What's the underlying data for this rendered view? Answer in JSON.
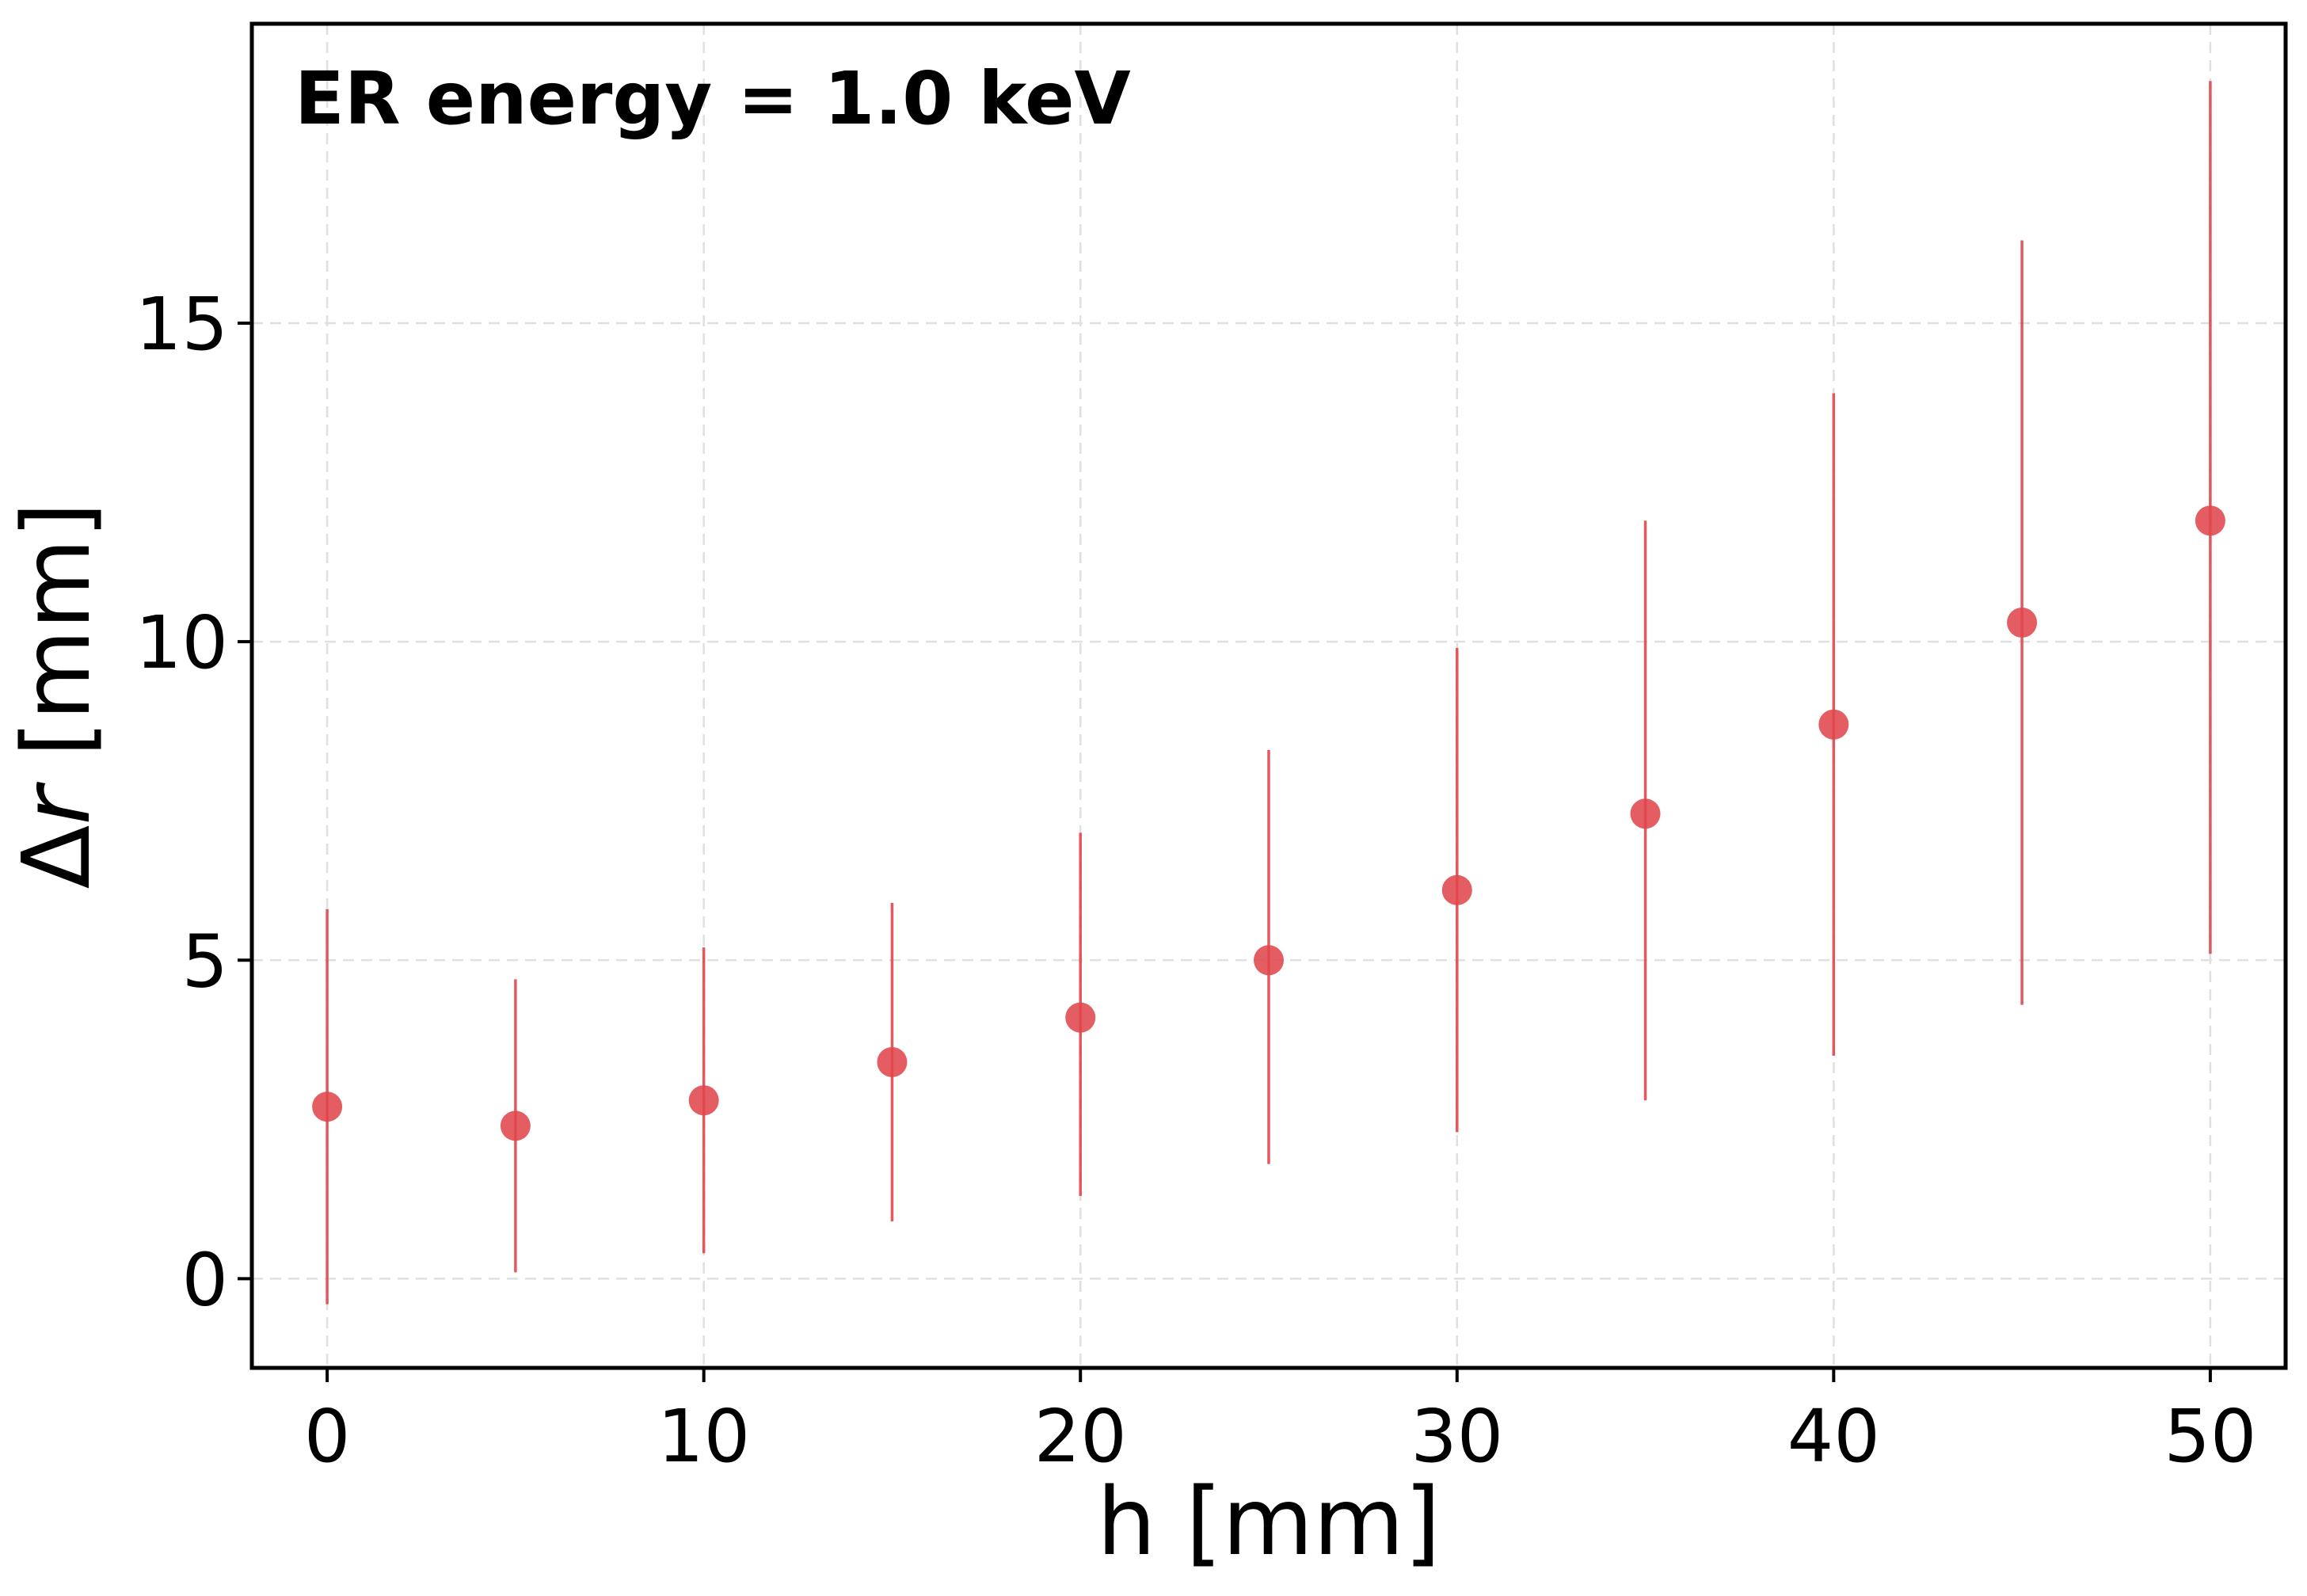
{
  "chart_data": {
    "type": "scatter",
    "title": "",
    "annotation": "ER energy = 1.0 keV",
    "xlabel": "h [mm]",
    "ylabel_symbol": "Δ",
    "ylabel_var": "r",
    "ylabel_unit": " [mm]",
    "xlim": [
      -2,
      52
    ],
    "ylim": [
      -1.4,
      19.7
    ],
    "xticks": [
      0,
      10,
      20,
      30,
      40,
      50
    ],
    "xtick_labels": [
      "0",
      "10",
      "20",
      "30",
      "40",
      "50"
    ],
    "yticks": [
      0,
      5,
      10,
      15
    ],
    "ytick_labels": [
      "0",
      "5",
      "10",
      "15"
    ],
    "grid": true,
    "series": [
      {
        "name": "Δr",
        "color": "#e0474c",
        "x": [
          0,
          5,
          10,
          15,
          20,
          25,
          30,
          35,
          40,
          45,
          50
        ],
        "y": [
          2.7,
          2.4,
          2.8,
          3.4,
          4.1,
          5.0,
          6.1,
          7.3,
          8.7,
          10.3,
          11.9
        ],
        "yerr_low": [
          -0.4,
          0.1,
          0.4,
          0.9,
          1.3,
          1.8,
          2.3,
          2.8,
          3.5,
          4.3,
          5.1
        ],
        "yerr_high": [
          5.8,
          4.7,
          5.2,
          5.9,
          7.0,
          8.3,
          9.9,
          11.9,
          13.9,
          16.3,
          18.8
        ]
      }
    ]
  }
}
